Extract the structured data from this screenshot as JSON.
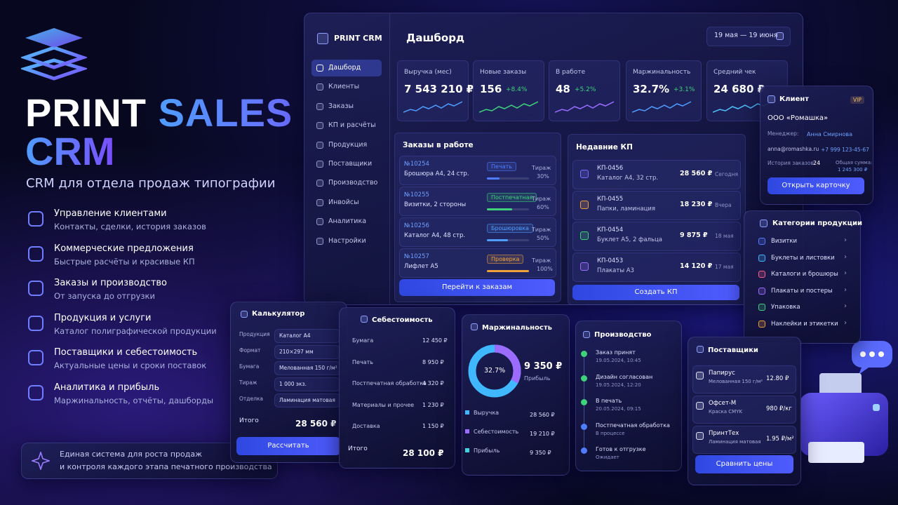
{
  "brand": {
    "title_1": "PRINT",
    "title_2": "SALES",
    "title_3": "CRM",
    "subtitle": "CRM для отдела продаж типографии"
  },
  "features": [
    {
      "title": "Управление клиентами",
      "desc": "Контакты, сделки, история заказов"
    },
    {
      "title": "Коммерческие предложения",
      "desc": "Быстрые расчёты и красивые КП"
    },
    {
      "title": "Заказы и производство",
      "desc": "От запуска до отгрузки"
    },
    {
      "title": "Продукция и услуги",
      "desc": "Каталог полиграфической продукции"
    },
    {
      "title": "Поставщики и себестоимость",
      "desc": "Актуальные цены и сроки поставок"
    },
    {
      "title": "Аналитика и прибыль",
      "desc": "Маржинальность, отчёты, дашборды"
    }
  ],
  "footer_note": [
    "Единая система для роста продаж",
    "и контроля каждого этапа печатного производства"
  ],
  "dashboard": {
    "logo": "PRINT CRM",
    "title": "Дашборд",
    "date_range": "19 мая — 19 июня",
    "nav": [
      "Дашборд",
      "Клиенты",
      "Заказы",
      "КП и расчёты",
      "Продукция",
      "Поставщики",
      "Производство",
      "Инвойсы",
      "Аналитика",
      "Настройки"
    ],
    "kpis": [
      {
        "label": "Выручка (мес)",
        "value": "7 543 210 ₽"
      },
      {
        "label": "Новые заказы",
        "value": "156",
        "delta": "+8.4%"
      },
      {
        "label": "В работе",
        "value": "48",
        "delta": "+5.2%"
      },
      {
        "label": "Маржинальность",
        "value": "32.7%",
        "delta": "+3.1%"
      },
      {
        "label": "Средний чек",
        "value": "24 680 ₽"
      }
    ],
    "orders": {
      "title": "Заказы в работе",
      "button": "Перейти к заказам",
      "items": [
        {
          "id": "№10254",
          "desc": "Брошюра А4, 24 стр.",
          "status": "Печать",
          "status_color": "#4f7dff",
          "run_label": "Тираж",
          "progress": "30%"
        },
        {
          "id": "№10255",
          "desc": "Визитки, 2 стороны",
          "status": "Постпечатная",
          "status_color": "#3fd27a",
          "run_label": "Тираж",
          "progress": "60%"
        },
        {
          "id": "№10256",
          "desc": "Каталог А4, 48 стр.",
          "status": "Брошюровка",
          "status_color": "#4f9dff",
          "run_label": "Тираж",
          "progress": "50%"
        },
        {
          "id": "№10257",
          "desc": "Лифлет А5",
          "status": "Проверка",
          "status_color": "#f0a23a",
          "run_label": "Тираж",
          "progress": "100%"
        }
      ]
    },
    "quotes": {
      "title": "Недавние КП",
      "button": "Создать КП",
      "items": [
        {
          "id": "КП-0456",
          "desc": "Каталог А4, 32 стр.",
          "amount": "28 560 ₽",
          "date": "Сегодня",
          "color": "#7c6cff"
        },
        {
          "id": "КП-0455",
          "desc": "Папки, ламинация",
          "amount": "18 230 ₽",
          "date": "Вчера",
          "color": "#f0a23a"
        },
        {
          "id": "КП-0454",
          "desc": "Буклет А5, 2 фальца",
          "amount": "9 875 ₽",
          "date": "18 мая",
          "color": "#3fd27a"
        },
        {
          "id": "КП-0453",
          "desc": "Плакаты А3",
          "amount": "14 120 ₽",
          "date": "17 мая",
          "color": "#9b6cff"
        }
      ]
    }
  },
  "client": {
    "title": "Клиент",
    "badge": "VIP",
    "name": "ООО «Ромашка»",
    "manager_label": "Менеджер:",
    "manager": "Анна Смирнова",
    "email": "anna@romashka.ru",
    "phone": "+7 999 123-45-67",
    "history_label": "История заказов:",
    "history": "24",
    "total_label": "Общая сумма:",
    "total": "1 245 300 ₽",
    "button": "Открыть карточку"
  },
  "categories": {
    "title": "Категории продукции",
    "items": [
      {
        "name": "Визитки",
        "color": "#4f7dff"
      },
      {
        "name": "Буклеты и листовки",
        "color": "#3fb8ff"
      },
      {
        "name": "Каталоги и брошюры",
        "color": "#ff5c8a"
      },
      {
        "name": "Плакаты и постеры",
        "color": "#9b6cff"
      },
      {
        "name": "Упаковка",
        "color": "#3fd27a"
      },
      {
        "name": "Наклейки и этикетки",
        "color": "#f0a23a"
      }
    ]
  },
  "calculator": {
    "title": "Калькулятор",
    "rows": [
      {
        "label": "Продукция",
        "value": "Каталог А4"
      },
      {
        "label": "Формат",
        "value": "210×297 мм"
      },
      {
        "label": "Бумага",
        "value": "Мелованная 150 г/м²"
      },
      {
        "label": "Тираж",
        "value": "1 000 экз."
      },
      {
        "label": "Отделка",
        "value": "Ламинация матовая"
      }
    ],
    "total_label": "Итого",
    "total": "28 560 ₽",
    "button": "Рассчитать"
  },
  "cost": {
    "title": "Себестоимость",
    "rows": [
      {
        "label": "Бумага",
        "value": "12 450 ₽"
      },
      {
        "label": "Печать",
        "value": "8 950 ₽"
      },
      {
        "label": "Постпечатная обработка",
        "value": "4 320 ₽"
      },
      {
        "label": "Материалы и прочее",
        "value": "1 230 ₽"
      },
      {
        "label": "Доставка",
        "value": "1 150 ₽"
      }
    ],
    "total_label": "Итого",
    "total": "28 100 ₽"
  },
  "margin": {
    "title": "Маржинальность",
    "center_value": "32.7%",
    "profit": "9 350 ₽",
    "profit_label": "Прибыль",
    "legend": [
      {
        "label": "Выручка",
        "value": "28 560 ₽",
        "color": "#3fb8ff"
      },
      {
        "label": "Себестоимость",
        "value": "19 210 ₽",
        "color": "#9b6cff"
      },
      {
        "label": "Прибыль",
        "value": "9 350 ₽",
        "color": "#3fd2e0"
      }
    ]
  },
  "production": {
    "title": "Производство",
    "steps": [
      {
        "name": "Заказ принят",
        "sub": "19.05.2024, 10:45",
        "done": true
      },
      {
        "name": "Дизайн согласован",
        "sub": "19.05.2024, 12:20",
        "done": true
      },
      {
        "name": "В печать",
        "sub": "20.05.2024, 09:15",
        "done": true
      },
      {
        "name": "Постпечатная обработка",
        "sub": "В процессе",
        "done": false
      },
      {
        "name": "Готов к отгрузке",
        "sub": "Ожидает",
        "done": false
      }
    ]
  },
  "suppliers": {
    "title": "Поставщики",
    "items": [
      {
        "name": "Папирус",
        "desc": "Мелованная 150 г/м²",
        "price": "12.80 ₽"
      },
      {
        "name": "Офсет-М",
        "desc": "Краска CMYK",
        "price": "980 ₽/кг"
      },
      {
        "name": "ПринтТех",
        "desc": "Ламинация матовая",
        "price": "1.95 ₽/м²"
      }
    ],
    "button": "Сравнить цены"
  }
}
